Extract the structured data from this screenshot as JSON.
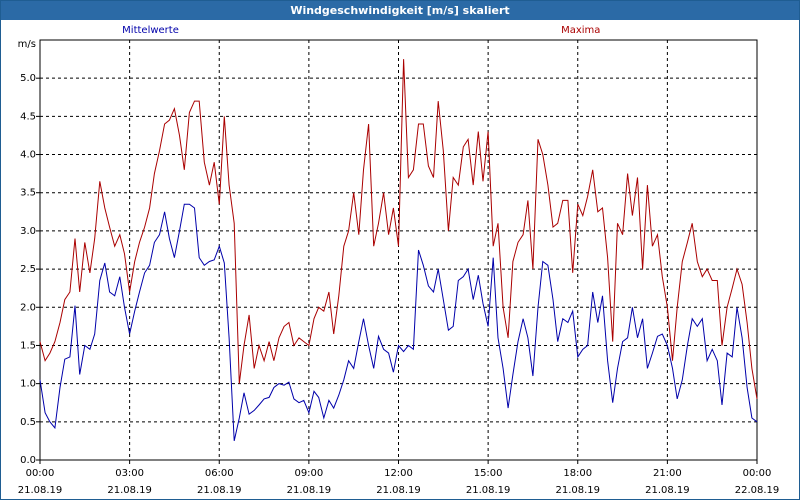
{
  "window": {
    "title": "Windgeschwindigkeit [m/s] skaliert"
  },
  "chart_data": {
    "type": "line",
    "title": "Windgeschwindigkeit [m/s] skaliert",
    "ylabel": "m/s",
    "xlabel": "",
    "ylim": [
      0,
      5.5
    ],
    "y_ticks": [
      "0.0",
      "0.5",
      "1.0",
      "1.5",
      "2.0",
      "2.5",
      "3.0",
      "3.5",
      "4.0",
      "4.5",
      "5.0"
    ],
    "x_ticks": [
      {
        "time": "00:00",
        "date": "21.08.19"
      },
      {
        "time": "03:00",
        "date": "21.08.19"
      },
      {
        "time": "06:00",
        "date": "21.08.19"
      },
      {
        "time": "09:00",
        "date": "21.08.19"
      },
      {
        "time": "12:00",
        "date": "21.08.19"
      },
      {
        "time": "15:00",
        "date": "21.08.19"
      },
      {
        "time": "18:00",
        "date": "21.08.19"
      },
      {
        "time": "21:00",
        "date": "21.08.19"
      },
      {
        "time": "00:00",
        "date": "22.08.19"
      }
    ],
    "grid": true,
    "series": [
      {
        "name": "Mittelwerte",
        "color": "#0000aa",
        "points": [
          [
            0,
            1.05
          ],
          [
            0.17,
            0.62
          ],
          [
            0.33,
            0.5
          ],
          [
            0.5,
            0.42
          ],
          [
            0.67,
            0.95
          ],
          [
            0.83,
            1.32
          ],
          [
            1.0,
            1.35
          ],
          [
            1.17,
            2.02
          ],
          [
            1.33,
            1.12
          ],
          [
            1.5,
            1.5
          ],
          [
            1.67,
            1.45
          ],
          [
            1.83,
            1.65
          ],
          [
            2.0,
            2.35
          ],
          [
            2.17,
            2.58
          ],
          [
            2.33,
            2.2
          ],
          [
            2.5,
            2.15
          ],
          [
            2.67,
            2.4
          ],
          [
            2.83,
            2.0
          ],
          [
            3.0,
            1.65
          ],
          [
            3.17,
            1.95
          ],
          [
            3.33,
            2.2
          ],
          [
            3.5,
            2.45
          ],
          [
            3.67,
            2.55
          ],
          [
            3.83,
            2.85
          ],
          [
            4.0,
            2.95
          ],
          [
            4.17,
            3.25
          ],
          [
            4.33,
            2.9
          ],
          [
            4.5,
            2.65
          ],
          [
            4.67,
            3.0
          ],
          [
            4.83,
            3.35
          ],
          [
            5.0,
            3.35
          ],
          [
            5.17,
            3.3
          ],
          [
            5.33,
            2.65
          ],
          [
            5.5,
            2.55
          ],
          [
            5.67,
            2.6
          ],
          [
            5.83,
            2.62
          ],
          [
            6.0,
            2.8
          ],
          [
            6.17,
            2.58
          ],
          [
            6.33,
            1.6
          ],
          [
            6.5,
            0.25
          ],
          [
            6.67,
            0.55
          ],
          [
            6.83,
            0.88
          ],
          [
            7.0,
            0.6
          ],
          [
            7.17,
            0.65
          ],
          [
            7.33,
            0.72
          ],
          [
            7.5,
            0.8
          ],
          [
            7.67,
            0.82
          ],
          [
            7.83,
            0.95
          ],
          [
            8.0,
            1.0
          ],
          [
            8.17,
            0.98
          ],
          [
            8.33,
            1.02
          ],
          [
            8.5,
            0.8
          ],
          [
            8.67,
            0.75
          ],
          [
            8.83,
            0.78
          ],
          [
            9.0,
            0.62
          ],
          [
            9.17,
            0.9
          ],
          [
            9.33,
            0.82
          ],
          [
            9.5,
            0.55
          ],
          [
            9.67,
            0.78
          ],
          [
            9.83,
            0.68
          ],
          [
            10.0,
            0.85
          ],
          [
            10.17,
            1.05
          ],
          [
            10.33,
            1.3
          ],
          [
            10.5,
            1.2
          ],
          [
            10.67,
            1.55
          ],
          [
            10.83,
            1.85
          ],
          [
            11.0,
            1.5
          ],
          [
            11.17,
            1.2
          ],
          [
            11.33,
            1.62
          ],
          [
            11.5,
            1.45
          ],
          [
            11.67,
            1.4
          ],
          [
            11.83,
            1.15
          ],
          [
            12.0,
            1.5
          ],
          [
            12.17,
            1.42
          ],
          [
            12.33,
            1.5
          ],
          [
            12.5,
            1.45
          ],
          [
            12.67,
            2.75
          ],
          [
            12.83,
            2.55
          ],
          [
            13.0,
            2.28
          ],
          [
            13.17,
            2.2
          ],
          [
            13.33,
            2.5
          ],
          [
            13.5,
            2.1
          ],
          [
            13.67,
            1.7
          ],
          [
            13.83,
            1.75
          ],
          [
            14.0,
            2.35
          ],
          [
            14.17,
            2.4
          ],
          [
            14.33,
            2.5
          ],
          [
            14.5,
            2.1
          ],
          [
            14.67,
            2.42
          ],
          [
            14.83,
            2.05
          ],
          [
            15.0,
            1.75
          ],
          [
            15.17,
            2.65
          ],
          [
            15.33,
            1.6
          ],
          [
            15.5,
            1.2
          ],
          [
            15.67,
            0.68
          ],
          [
            15.83,
            1.12
          ],
          [
            16.0,
            1.55
          ],
          [
            16.17,
            1.85
          ],
          [
            16.33,
            1.6
          ],
          [
            16.5,
            1.1
          ],
          [
            16.67,
            2.0
          ],
          [
            16.83,
            2.6
          ],
          [
            17.0,
            2.55
          ],
          [
            17.17,
            2.1
          ],
          [
            17.33,
            1.55
          ],
          [
            17.5,
            1.85
          ],
          [
            17.67,
            1.8
          ],
          [
            17.83,
            1.95
          ],
          [
            18.0,
            1.35
          ],
          [
            18.17,
            1.45
          ],
          [
            18.33,
            1.5
          ],
          [
            18.5,
            2.2
          ],
          [
            18.67,
            1.8
          ],
          [
            18.83,
            2.15
          ],
          [
            19.0,
            1.3
          ],
          [
            19.17,
            0.75
          ],
          [
            19.33,
            1.2
          ],
          [
            19.5,
            1.55
          ],
          [
            19.67,
            1.6
          ],
          [
            19.83,
            2.0
          ],
          [
            20.0,
            1.6
          ],
          [
            20.17,
            1.85
          ],
          [
            20.33,
            1.2
          ],
          [
            20.5,
            1.4
          ],
          [
            20.67,
            1.62
          ],
          [
            20.83,
            1.65
          ],
          [
            21.0,
            1.5
          ],
          [
            21.17,
            1.2
          ],
          [
            21.33,
            0.8
          ],
          [
            21.5,
            1.05
          ],
          [
            21.67,
            1.5
          ],
          [
            21.83,
            1.85
          ],
          [
            22.0,
            1.75
          ],
          [
            22.17,
            1.85
          ],
          [
            22.33,
            1.3
          ],
          [
            22.5,
            1.45
          ],
          [
            22.67,
            1.3
          ],
          [
            22.83,
            0.72
          ],
          [
            23.0,
            1.4
          ],
          [
            23.17,
            1.35
          ],
          [
            23.33,
            2.0
          ],
          [
            23.5,
            1.6
          ],
          [
            23.67,
            0.95
          ],
          [
            23.83,
            0.55
          ],
          [
            24.0,
            0.5
          ]
        ]
      },
      {
        "name": "Maxima",
        "color": "#aa0000",
        "points": [
          [
            0,
            1.55
          ],
          [
            0.17,
            1.3
          ],
          [
            0.33,
            1.4
          ],
          [
            0.5,
            1.55
          ],
          [
            0.67,
            1.8
          ],
          [
            0.83,
            2.1
          ],
          [
            1.0,
            2.2
          ],
          [
            1.17,
            2.9
          ],
          [
            1.33,
            2.2
          ],
          [
            1.5,
            2.85
          ],
          [
            1.67,
            2.45
          ],
          [
            1.83,
            2.9
          ],
          [
            2.0,
            3.65
          ],
          [
            2.17,
            3.3
          ],
          [
            2.33,
            3.05
          ],
          [
            2.5,
            2.8
          ],
          [
            2.67,
            2.95
          ],
          [
            2.83,
            2.7
          ],
          [
            3.0,
            2.2
          ],
          [
            3.17,
            2.6
          ],
          [
            3.33,
            2.85
          ],
          [
            3.5,
            3.05
          ],
          [
            3.67,
            3.3
          ],
          [
            3.83,
            3.75
          ],
          [
            4.0,
            4.05
          ],
          [
            4.17,
            4.4
          ],
          [
            4.33,
            4.45
          ],
          [
            4.5,
            4.6
          ],
          [
            4.67,
            4.25
          ],
          [
            4.83,
            3.8
          ],
          [
            5.0,
            4.55
          ],
          [
            5.17,
            4.7
          ],
          [
            5.33,
            4.7
          ],
          [
            5.5,
            3.9
          ],
          [
            5.67,
            3.6
          ],
          [
            5.83,
            3.9
          ],
          [
            6.0,
            3.35
          ],
          [
            6.17,
            4.5
          ],
          [
            6.33,
            3.6
          ],
          [
            6.5,
            3.1
          ],
          [
            6.67,
            1.0
          ],
          [
            6.83,
            1.5
          ],
          [
            7.0,
            1.9
          ],
          [
            7.17,
            1.2
          ],
          [
            7.33,
            1.5
          ],
          [
            7.5,
            1.3
          ],
          [
            7.67,
            1.55
          ],
          [
            7.83,
            1.3
          ],
          [
            8.0,
            1.6
          ],
          [
            8.17,
            1.75
          ],
          [
            8.33,
            1.8
          ],
          [
            8.5,
            1.5
          ],
          [
            8.67,
            1.6
          ],
          [
            8.83,
            1.55
          ],
          [
            9.0,
            1.5
          ],
          [
            9.17,
            1.85
          ],
          [
            9.33,
            2.0
          ],
          [
            9.5,
            1.95
          ],
          [
            9.67,
            2.2
          ],
          [
            9.83,
            1.65
          ],
          [
            10.0,
            2.15
          ],
          [
            10.17,
            2.8
          ],
          [
            10.33,
            3.0
          ],
          [
            10.5,
            3.5
          ],
          [
            10.67,
            2.95
          ],
          [
            10.83,
            3.8
          ],
          [
            11.0,
            4.4
          ],
          [
            11.17,
            2.8
          ],
          [
            11.33,
            3.1
          ],
          [
            11.5,
            3.5
          ],
          [
            11.67,
            2.95
          ],
          [
            11.83,
            3.3
          ],
          [
            12.0,
            2.8
          ],
          [
            12.17,
            5.25
          ],
          [
            12.33,
            3.7
          ],
          [
            12.5,
            3.8
          ],
          [
            12.67,
            4.4
          ],
          [
            12.83,
            4.4
          ],
          [
            13.0,
            3.85
          ],
          [
            13.17,
            3.7
          ],
          [
            13.33,
            4.7
          ],
          [
            13.5,
            4.05
          ],
          [
            13.67,
            3.0
          ],
          [
            13.83,
            3.7
          ],
          [
            14.0,
            3.6
          ],
          [
            14.17,
            4.1
          ],
          [
            14.33,
            4.2
          ],
          [
            14.5,
            3.6
          ],
          [
            14.67,
            4.3
          ],
          [
            14.83,
            3.65
          ],
          [
            15.0,
            4.3
          ],
          [
            15.17,
            2.8
          ],
          [
            15.33,
            3.1
          ],
          [
            15.5,
            2.0
          ],
          [
            15.67,
            1.6
          ],
          [
            15.83,
            2.6
          ],
          [
            16.0,
            2.85
          ],
          [
            16.17,
            2.95
          ],
          [
            16.33,
            3.4
          ],
          [
            16.5,
            2.5
          ],
          [
            16.67,
            4.2
          ],
          [
            16.83,
            4.0
          ],
          [
            17.0,
            3.6
          ],
          [
            17.17,
            3.05
          ],
          [
            17.33,
            3.1
          ],
          [
            17.5,
            3.4
          ],
          [
            17.67,
            3.4
          ],
          [
            17.83,
            2.45
          ],
          [
            18.0,
            3.35
          ],
          [
            18.17,
            3.2
          ],
          [
            18.33,
            3.45
          ],
          [
            18.5,
            3.8
          ],
          [
            18.67,
            3.25
          ],
          [
            18.83,
            3.3
          ],
          [
            19.0,
            2.65
          ],
          [
            19.17,
            1.55
          ],
          [
            19.33,
            3.1
          ],
          [
            19.5,
            2.95
          ],
          [
            19.67,
            3.75
          ],
          [
            19.83,
            3.2
          ],
          [
            20.0,
            3.7
          ],
          [
            20.17,
            2.5
          ],
          [
            20.33,
            3.6
          ],
          [
            20.5,
            2.8
          ],
          [
            20.67,
            2.95
          ],
          [
            20.83,
            2.4
          ],
          [
            21.0,
            2.0
          ],
          [
            21.17,
            1.3
          ],
          [
            21.33,
            2.0
          ],
          [
            21.5,
            2.6
          ],
          [
            21.67,
            2.85
          ],
          [
            21.83,
            3.1
          ],
          [
            22.0,
            2.6
          ],
          [
            22.17,
            2.4
          ],
          [
            22.33,
            2.5
          ],
          [
            22.5,
            2.35
          ],
          [
            22.67,
            2.35
          ],
          [
            22.83,
            1.5
          ],
          [
            23.0,
            2.0
          ],
          [
            23.17,
            2.25
          ],
          [
            23.33,
            2.5
          ],
          [
            23.5,
            2.3
          ],
          [
            23.67,
            1.8
          ],
          [
            23.83,
            1.2
          ],
          [
            24.0,
            0.8
          ]
        ]
      }
    ]
  }
}
